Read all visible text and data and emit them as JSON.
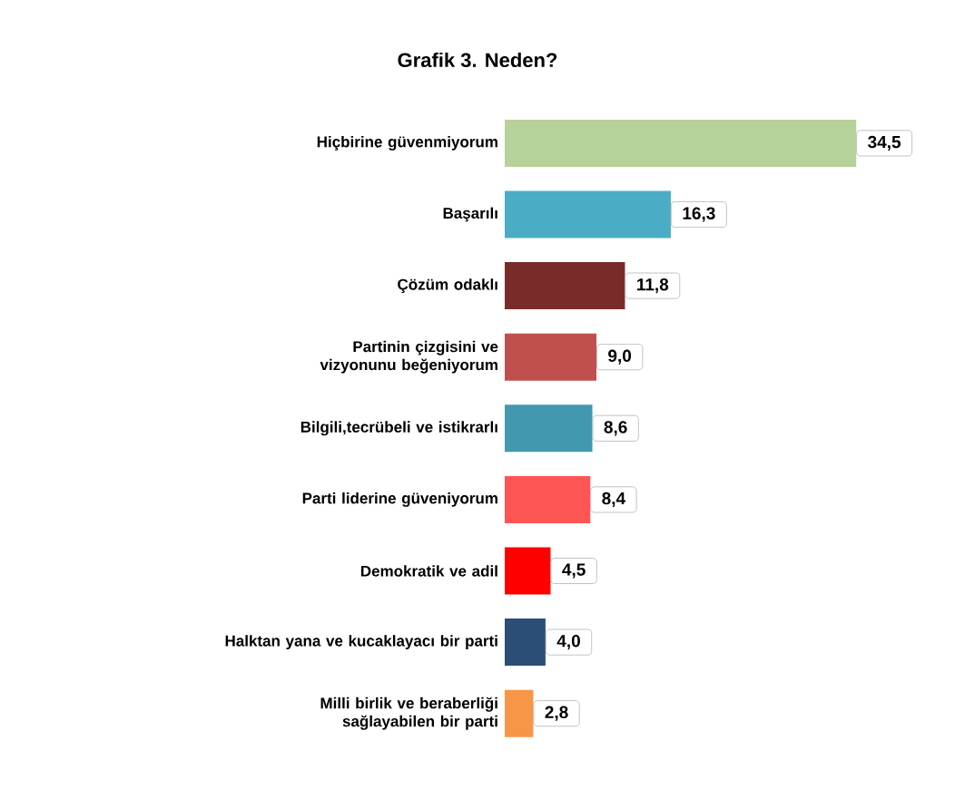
{
  "chart_data": {
    "type": "bar",
    "orientation": "horizontal",
    "title": "Grafik 3. Neden?",
    "categories": [
      "Hiçbirine güvenmiyorum",
      "Başarılı",
      "Çözüm odaklı",
      "Partinin çizgisini ve vizyonunu beğeniyorum",
      "Bilgili,tecrübeli ve istikrarlı",
      "Parti liderine güveniyorum",
      "Demokratik ve adil",
      "Halktan yana ve kucaklayacı bir parti",
      "Milli birlik ve beraberliği sağlayabilen bir parti"
    ],
    "values": [
      34.5,
      16.3,
      11.8,
      9.0,
      8.6,
      8.4,
      4.5,
      4.0,
      2.8
    ],
    "value_labels": [
      "34,5",
      "16,3",
      "11,8",
      "9,0",
      "8,6",
      "8,4",
      "4,5",
      "4,0",
      "2,8"
    ],
    "colors": [
      "#b7d19a",
      "#4bacc6",
      "#772c2a",
      "#c0504d",
      "#4198af",
      "#fd5454",
      "#ff0000",
      "#2c4d75",
      "#f79646"
    ],
    "tick_labels": "y",
    "grid": false
  }
}
